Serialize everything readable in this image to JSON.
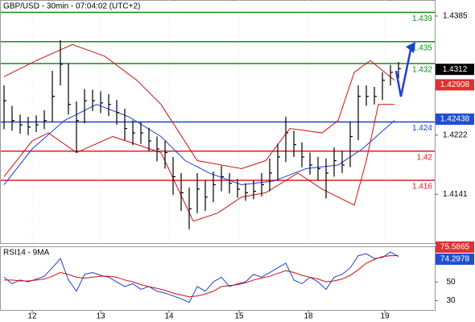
{
  "chart_data": {
    "type": "ohlc",
    "title": "GBP/USD - 30min - 07:04:02 (UTC+2)",
    "xlim": [
      -0.5,
      53.5
    ],
    "xticks": [
      {
        "value": 3.5,
        "label": "12"
      },
      {
        "value": 12,
        "label": "13"
      },
      {
        "value": 20.5,
        "label": "14"
      },
      {
        "value": 29.2,
        "label": "15"
      },
      {
        "value": 37.8,
        "label": "18"
      },
      {
        "value": 47.3,
        "label": "19"
      }
    ],
    "ylim": [
      1.4074,
      1.4407
    ],
    "yticks": [
      1.4385,
      1.4222,
      1.4141
    ],
    "color": "#000000",
    "high": [
      1.429,
      1.4262,
      1.425,
      1.4247,
      1.4249,
      1.4256,
      1.431,
      1.4352,
      1.432,
      1.4268,
      1.4285,
      1.4284,
      1.4282,
      1.4278,
      1.427,
      1.4258,
      1.4242,
      1.424,
      1.4232,
      1.422,
      1.4214,
      1.4192,
      1.417,
      1.415,
      1.417,
      1.416,
      1.4172,
      1.418,
      1.417,
      1.4162,
      1.4156,
      1.416,
      1.417,
      1.419,
      1.421,
      1.4247,
      1.4228,
      1.4212,
      1.4198,
      1.4192,
      1.419,
      1.4205,
      1.42,
      1.424,
      1.429,
      1.429,
      1.4288,
      1.4308,
      1.4318,
      1.4322
    ],
    "low": [
      1.423,
      1.4228,
      1.4224,
      1.4222,
      1.4226,
      1.423,
      1.424,
      1.429,
      1.425,
      1.4198,
      1.4238,
      1.4255,
      1.4252,
      1.4248,
      1.4236,
      1.4215,
      1.4208,
      1.421,
      1.42,
      1.4186,
      1.4176,
      1.414,
      1.4118,
      1.4093,
      1.4115,
      1.4118,
      1.413,
      1.4145,
      1.4142,
      1.4136,
      1.4132,
      1.4134,
      1.4138,
      1.4145,
      1.416,
      1.4185,
      1.4192,
      1.4178,
      1.4168,
      1.416,
      1.4135,
      1.4165,
      1.417,
      1.4178,
      1.4215,
      1.4262,
      1.4264,
      1.427,
      1.429,
      1.43
    ],
    "close": [
      1.4269,
      1.4242,
      1.4236,
      1.4233,
      1.4236,
      1.4242,
      1.4275,
      1.4319,
      1.4264,
      1.4242,
      1.4269,
      1.4269,
      1.4266,
      1.4264,
      1.4253,
      1.4231,
      1.4225,
      1.4225,
      1.4214,
      1.4203,
      1.4198,
      1.4165,
      1.4143,
      1.4121,
      1.4148,
      1.4137,
      1.4154,
      1.4165,
      1.4156,
      1.4148,
      1.4143,
      1.4145,
      1.4154,
      1.417,
      1.4192,
      1.4225,
      1.4209,
      1.4192,
      1.4181,
      1.4176,
      1.417,
      1.4187,
      1.4181,
      1.422,
      1.4275,
      1.4275,
      1.4275,
      1.4297,
      1.4308,
      1.4313
    ],
    "overlays": [
      {
        "color": "#cc1111",
        "x": [
          0,
          4,
          8.5,
          12.5,
          16.5,
          19.5,
          24,
          29.5,
          32.5,
          35.5,
          39.5,
          41.5,
          43.5,
          45.5,
          48.5
        ],
        "values": [
          1.4302,
          1.4324,
          1.4346,
          1.433,
          1.4297,
          1.4264,
          1.4187,
          1.4176,
          1.4187,
          1.4231,
          1.4225,
          1.4242,
          1.4308,
          1.4324,
          1.4297
        ]
      },
      {
        "color": "#cc1111",
        "x": [
          0,
          3.5,
          5.5,
          9,
          13.5,
          19.5,
          23.5,
          26.5,
          29.5,
          32.5,
          36.5,
          39.5,
          43.5,
          45,
          46.5,
          48.5
        ],
        "values": [
          1.4165,
          1.4214,
          1.4225,
          1.4198,
          1.422,
          1.4198,
          1.4104,
          1.4115,
          1.4137,
          1.4143,
          1.417,
          1.4148,
          1.4126,
          1.4187,
          1.4264,
          1.4264
        ]
      },
      {
        "color": "#1f3fd0",
        "x": [
          0,
          3.5,
          7.5,
          11.5,
          15.5,
          19.5,
          22.5,
          25.5,
          29.5,
          33.5,
          37.5,
          41.5,
          44.5,
          48.5
        ],
        "values": [
          1.4154,
          1.4203,
          1.4242,
          1.4264,
          1.4247,
          1.422,
          1.4187,
          1.417,
          1.4154,
          1.4159,
          1.4176,
          1.4181,
          1.4203,
          1.4242
        ]
      }
    ],
    "levels": [
      {
        "value": 1.439,
        "color": "#1a8c1a"
      },
      {
        "value": 1.435,
        "color": "#1a8c1a"
      },
      {
        "value": 1.432,
        "color": "#1a8c1a"
      },
      {
        "value": 1.424,
        "color": "#1f3fd0"
      },
      {
        "value": 1.42,
        "color": "#e02020"
      },
      {
        "value": 1.416,
        "color": "#e02020"
      }
    ],
    "price_markers": [
      {
        "value": 1.4312,
        "color": "#000000"
      },
      {
        "value": 1.42908,
        "color": "#e03030"
      },
      {
        "value": 1.42438,
        "color": "#1f4fd0"
      }
    ],
    "rsi": {
      "title": "RSI14 - 9MA",
      "ylim": [
        20,
        88
      ],
      "yticks": [
        30,
        50
      ],
      "series": [
        {
          "color": "#1f3fd0",
          "values": [
            55,
            48,
            52,
            50,
            53,
            56,
            65,
            75,
            52,
            40,
            58,
            60,
            57,
            55,
            50,
            45,
            48,
            42,
            45,
            40,
            38,
            35,
            32,
            28,
            45,
            40,
            50,
            55,
            45,
            48,
            50,
            58,
            55,
            60,
            65,
            70,
            52,
            48,
            55,
            50,
            42,
            55,
            58,
            65,
            78,
            80,
            75,
            76,
            82,
            77
          ]
        },
        {
          "color": "#cc1111",
          "values": [
            52,
            52,
            51,
            51,
            52,
            53,
            56,
            60,
            58,
            55,
            54,
            55,
            56,
            56,
            55,
            52,
            50,
            47,
            45,
            43,
            41,
            38,
            36,
            34,
            35,
            37,
            40,
            45,
            46,
            47,
            49,
            52,
            54,
            56,
            59,
            62,
            60,
            57,
            55,
            53,
            50,
            51,
            53,
            57,
            63,
            70,
            74,
            77,
            78,
            78
          ]
        }
      ],
      "markers": [
        {
          "value": 75.5865,
          "color": "#e03030"
        },
        {
          "value": 74.2978,
          "color": "#1f4fd0"
        }
      ]
    }
  }
}
